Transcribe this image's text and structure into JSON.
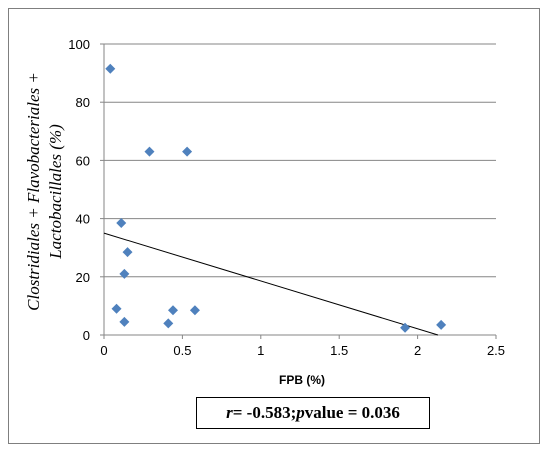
{
  "chart_data": {
    "type": "scatter",
    "xlabel": "FPB (%)",
    "ylabel_line1": "Clostridiales + Flavobacteriales +",
    "ylabel_line2": "Lactobacillales (%)",
    "xlim": [
      0,
      2.5
    ],
    "ylim": [
      0,
      100
    ],
    "x_ticks": [
      0,
      0.5,
      1,
      1.5,
      2,
      2.5
    ],
    "x_tick_labels": [
      "0",
      "0.5",
      "1",
      "1.5",
      "2",
      "2.5"
    ],
    "y_ticks": [
      0,
      20,
      40,
      60,
      80,
      100
    ],
    "y_tick_labels": [
      "0",
      "20",
      "40",
      "60",
      "80",
      "100"
    ],
    "grid": "horizontal",
    "marker": "diamond",
    "marker_color": "#4F81BD",
    "points": [
      {
        "x": 0.04,
        "y": 91.5
      },
      {
        "x": 0.29,
        "y": 63
      },
      {
        "x": 0.53,
        "y": 63
      },
      {
        "x": 0.11,
        "y": 38.5
      },
      {
        "x": 0.15,
        "y": 28.5
      },
      {
        "x": 0.13,
        "y": 21
      },
      {
        "x": 0.08,
        "y": 9
      },
      {
        "x": 0.13,
        "y": 4.5
      },
      {
        "x": 0.41,
        "y": 4
      },
      {
        "x": 0.44,
        "y": 8.5
      },
      {
        "x": 0.58,
        "y": 8.5
      },
      {
        "x": 1.92,
        "y": 2.5
      },
      {
        "x": 2.15,
        "y": 3.5
      }
    ],
    "trendline": {
      "x": [
        0.0,
        2.13
      ],
      "y": [
        35,
        0
      ],
      "color": "#000000"
    }
  },
  "stats": {
    "r_symbol": "r",
    "r_text": " = -0.583; ",
    "p_symbol": "p",
    "p_text": " value = 0.036"
  }
}
